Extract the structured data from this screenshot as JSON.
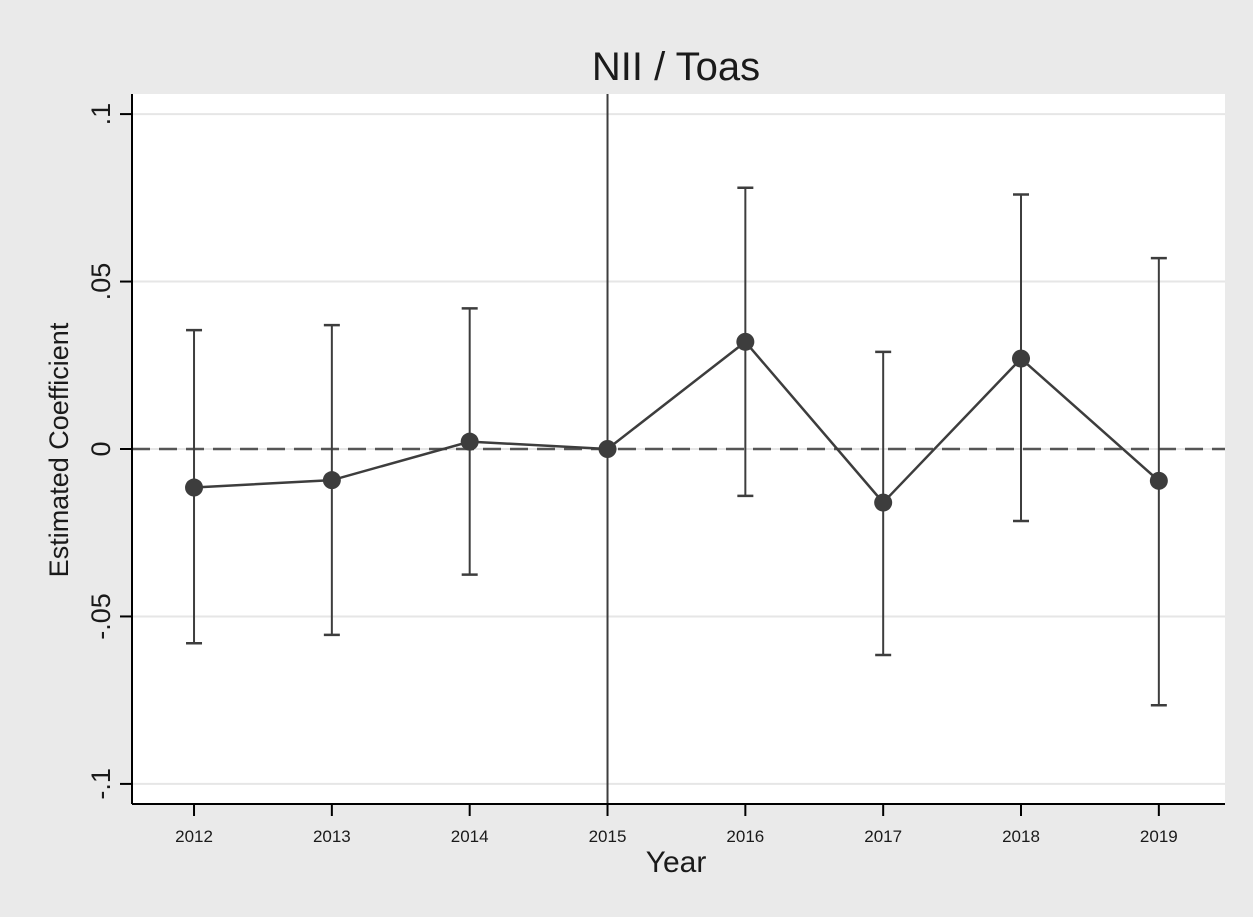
{
  "chart_data": {
    "type": "scatter",
    "title": "NII / Toas",
    "xlabel": "Year",
    "ylabel": "Estimated Coefficient",
    "x": [
      2012,
      2013,
      2014,
      2015,
      2016,
      2017,
      2018,
      2019
    ],
    "y": [
      -0.0115,
      -0.0093,
      0.0022,
      0.0,
      0.032,
      -0.016,
      0.027,
      -0.0095
    ],
    "ci_lower": [
      -0.058,
      -0.0555,
      -0.0375,
      null,
      -0.014,
      -0.0615,
      -0.0215,
      -0.0765
    ],
    "ci_upper": [
      0.0355,
      0.037,
      0.042,
      null,
      0.078,
      0.029,
      0.076,
      0.057
    ],
    "reference_x": 2015,
    "reference_y": 0,
    "xticks": [
      "2012",
      "2013",
      "2014",
      "2015",
      "2016",
      "2017",
      "2018",
      "2019"
    ],
    "yticks": [
      {
        "value": 0.1,
        "label": ".1"
      },
      {
        "value": 0.05,
        "label": ".05"
      },
      {
        "value": 0,
        "label": "0"
      },
      {
        "value": -0.05,
        "label": "-.05"
      },
      {
        "value": -0.1,
        "label": "-.1"
      }
    ],
    "xlim": [
      2011.55,
      2019.48
    ],
    "ylim": [
      -0.106,
      0.106
    ],
    "grid": true,
    "legend": "none",
    "colors": {
      "background": "#eaeaea",
      "plot_background": "#ffffff",
      "grid": "#e6e6e6",
      "series": "#3d3d3d",
      "reference": "#555555"
    }
  }
}
